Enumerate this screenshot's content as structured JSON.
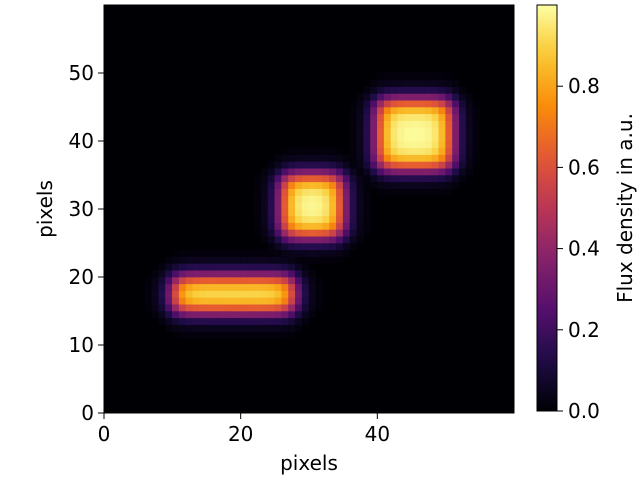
{
  "chart_data": {
    "type": "heatmap",
    "title": "",
    "xlabel": "pixels",
    "ylabel": "pixels",
    "xlim": [
      0,
      60
    ],
    "ylim": [
      0,
      60
    ],
    "xticks": [
      0,
      20,
      40
    ],
    "yticks": [
      0,
      10,
      20,
      30,
      40,
      50
    ],
    "grid": false,
    "colormap": "inferno",
    "colorbar": {
      "label": "Flux density in a.u.",
      "range": [
        0,
        1
      ],
      "ticks": [
        0.0,
        0.2,
        0.4,
        0.6,
        0.8
      ],
      "tick_labels": [
        "0.0",
        "0.2",
        "0.4",
        "0.6",
        "0.8"
      ]
    },
    "sources": [
      {
        "shape": "bar",
        "x_range": [
          10,
          28
        ],
        "y_range": [
          15,
          20
        ],
        "peak": 1.0
      },
      {
        "shape": "blob",
        "x_range": [
          26,
          35
        ],
        "y_range": [
          26,
          35
        ],
        "peak": 1.0
      },
      {
        "shape": "blob",
        "x_range": [
          40,
          51
        ],
        "y_range": [
          36,
          46
        ],
        "peak": 1.0
      }
    ]
  }
}
